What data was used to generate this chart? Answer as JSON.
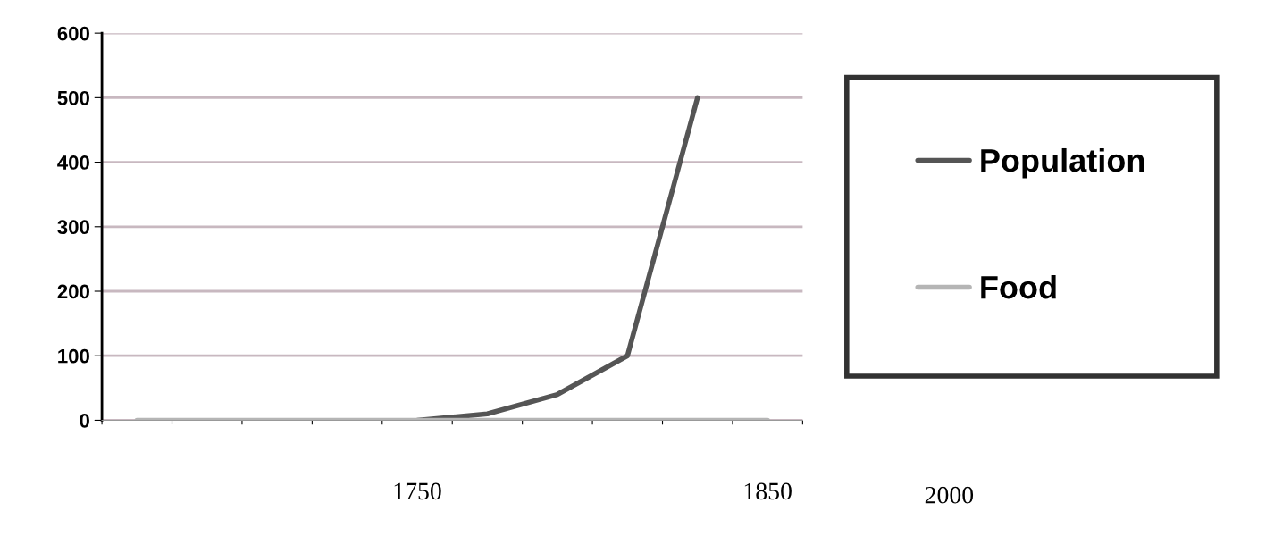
{
  "chart_data": {
    "type": "line",
    "categories": [
      null,
      null,
      null,
      null,
      "1750",
      null,
      null,
      null,
      null,
      "1850"
    ],
    "series": [
      {
        "name": "Population",
        "color": "#555555",
        "values": [
          null,
          null,
          null,
          null,
          0,
          10,
          40,
          100,
          500,
          null
        ]
      },
      {
        "name": "Food",
        "color": "#b5b5b5",
        "values": [
          0,
          0,
          0,
          0,
          0,
          0,
          0,
          0,
          0,
          0
        ]
      }
    ],
    "ylim": [
      0,
      600
    ],
    "yticks": [
      0,
      100,
      200,
      300,
      400,
      500,
      600
    ],
    "grid": "y",
    "legend": "right",
    "marker": "none",
    "line_style": "solid",
    "annotations": [
      "2000"
    ]
  }
}
